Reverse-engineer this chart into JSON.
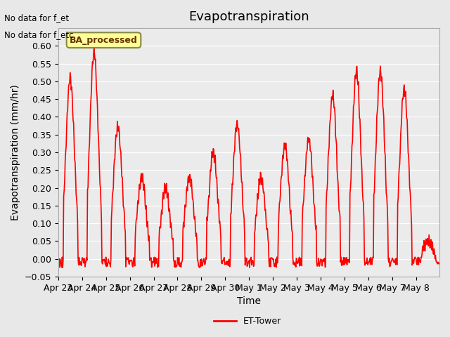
{
  "title": "Evapotranspiration",
  "ylabel": "Evapotranspiration (mm/hr)",
  "xlabel": "Time",
  "ylim": [
    -0.05,
    0.65
  ],
  "yticks": [
    -0.05,
    0.0,
    0.05,
    0.1,
    0.15,
    0.2,
    0.25,
    0.3,
    0.35,
    0.4,
    0.45,
    0.5,
    0.55,
    0.6
  ],
  "line_color": "#ff0000",
  "line_width": 1.2,
  "bg_color": "#e8e8e8",
  "plot_bg_color": "#ebebeb",
  "annotation_text1": "No data for f_et",
  "annotation_text2": "No data for f_etc",
  "legend_label": "ET-Tower",
  "legend_box_color": "#ffff99",
  "legend_box_text": "BA_processed",
  "xtick_labels": [
    "Apr 23",
    "Apr 24",
    "Apr 25",
    "Apr 26",
    "Apr 27",
    "Apr 28",
    "Apr 29",
    "Apr 30",
    "May 1",
    "May 2",
    "May 3",
    "May 4",
    "May 5",
    "May 6",
    "May 7",
    "May 8"
  ],
  "n_days": 16,
  "n_per_day": 48,
  "peak_values": [
    0.51,
    0.58,
    0.37,
    0.23,
    0.2,
    0.23,
    0.3,
    0.38,
    0.23,
    0.32,
    0.34,
    0.46,
    0.53,
    0.53,
    0.48,
    0.05
  ],
  "title_fontsize": 13,
  "axis_fontsize": 10,
  "tick_fontsize": 9
}
